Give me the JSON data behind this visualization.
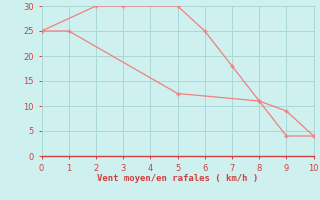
{
  "line1_x": [
    0,
    2,
    3,
    5,
    6,
    7,
    8,
    9,
    10
  ],
  "line1_y": [
    25,
    30,
    30,
    30,
    25,
    18,
    11,
    4,
    4
  ],
  "line2_x": [
    0,
    1,
    5,
    8,
    9,
    10
  ],
  "line2_y": [
    25,
    25,
    12.5,
    11,
    9,
    4
  ],
  "line_color": "#f08080",
  "marker_color": "#f08080",
  "bg_color": "#cef0ee",
  "grid_color": "#aad8d4",
  "axis_label_color": "#d04040",
  "tick_color": "#d04040",
  "xlabel": "Vent moyen/en rafales ( km/h )",
  "xlim": [
    -0.0,
    10.0
  ],
  "ylim": [
    0,
    30
  ],
  "xticks": [
    0,
    1,
    2,
    3,
    4,
    5,
    6,
    7,
    8,
    9,
    10
  ],
  "yticks": [
    0,
    5,
    10,
    15,
    20,
    25,
    30
  ],
  "xlabel_fontsize": 6.5,
  "tick_fontsize": 6.0,
  "linewidth": 0.9,
  "markersize": 3.5
}
